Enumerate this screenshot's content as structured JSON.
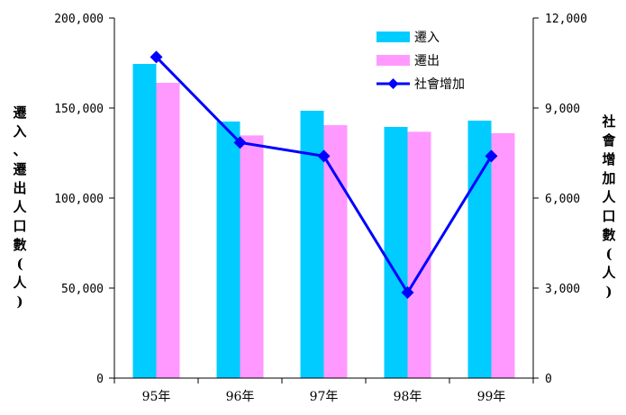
{
  "chart_data": {
    "type": "bar",
    "categories": [
      "95年",
      "96年",
      "97年",
      "98年",
      "99年"
    ],
    "series": [
      {
        "name": "遷入",
        "type": "bar",
        "axis": "left",
        "color": "#00CCFF",
        "values": [
          174500,
          142500,
          148500,
          139500,
          143000
        ]
      },
      {
        "name": "遷出",
        "type": "bar",
        "axis": "left",
        "color": "#FF99FF",
        "values": [
          164000,
          134800,
          140500,
          136800,
          136000
        ]
      },
      {
        "name": "社會增加",
        "type": "line",
        "axis": "right",
        "color": "#0000FF",
        "marker": "diamond",
        "values": [
          10700,
          7850,
          7400,
          2850,
          7400
        ]
      }
    ],
    "y_left": {
      "label": "遷入、遷出人口數(人)",
      "ylim": [
        0,
        200000
      ],
      "ticks": [
        0,
        50000,
        100000,
        150000,
        200000
      ],
      "tick_labels": [
        "0",
        "50,000",
        "100,000",
        "150,000",
        "200,000"
      ]
    },
    "y_right": {
      "label": "社會增加人口數(人)",
      "ylim": [
        0,
        12000
      ],
      "ticks": [
        0,
        3000,
        6000,
        9000,
        12000
      ],
      "tick_labels": [
        "0",
        "3,000",
        "6,000",
        "9,000",
        "12,000"
      ]
    },
    "legend": "top-right",
    "grid": false
  }
}
